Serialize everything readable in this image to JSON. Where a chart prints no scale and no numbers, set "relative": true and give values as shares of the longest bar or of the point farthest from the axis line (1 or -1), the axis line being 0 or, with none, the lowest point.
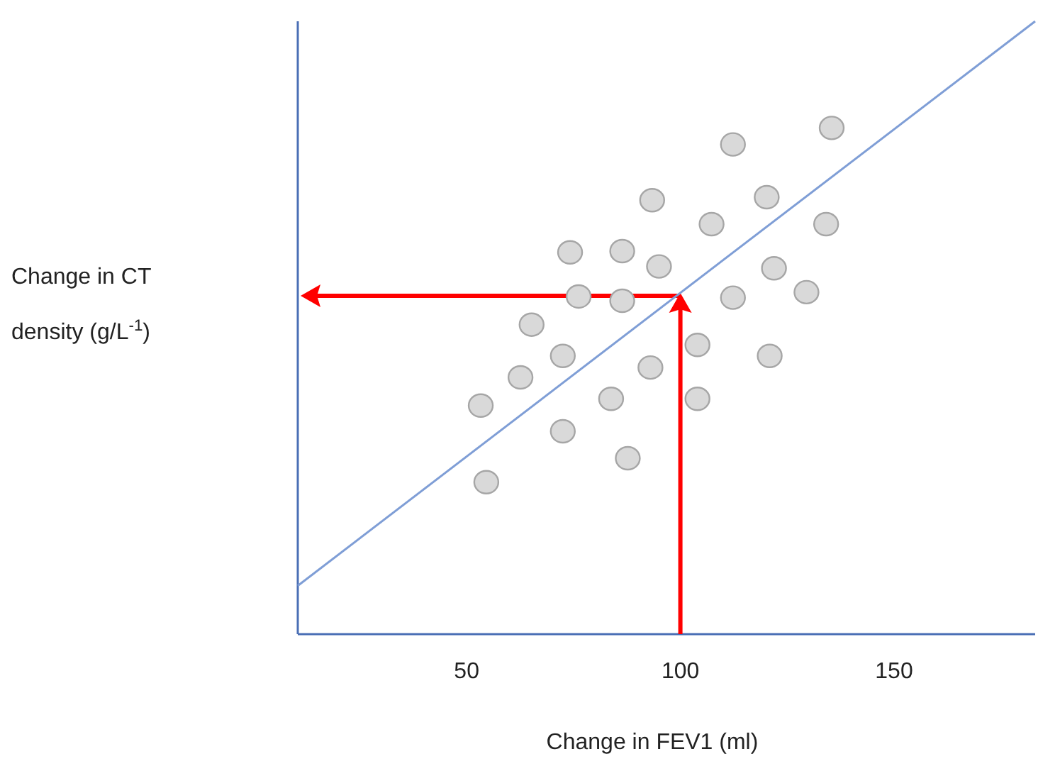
{
  "chart_data": {
    "type": "scatter",
    "xlabel": "Change in FEV1 (ml)",
    "ylabel": "Change in CT density (g/L$^{-1}$)",
    "relative": true,
    "xlim": [
      10.5,
      183
    ],
    "xticks": [
      50,
      100,
      150
    ],
    "tick_labels": "x",
    "grid": false,
    "legend": false,
    "marker": "circle",
    "series": [
      {
        "color": "#d9d9d9",
        "x": [
          112.3,
          135.4,
          93.4,
          120.2,
          107.3,
          134.1,
          74.2,
          86.4,
          95.0,
          121.9,
          76.2,
          86.4,
          112.3,
          129.5,
          65.2,
          104.0,
          72.5,
          120.9,
          62.6,
          93.0,
          53.3,
          83.8,
          104.0,
          72.5,
          87.7,
          54.6
        ],
        "values": [
          0.799,
          0.826,
          0.708,
          0.713,
          0.669,
          0.669,
          0.623,
          0.625,
          0.6,
          0.597,
          0.551,
          0.544,
          0.549,
          0.558,
          0.505,
          0.472,
          0.454,
          0.454,
          0.419,
          0.435,
          0.373,
          0.384,
          0.384,
          0.331,
          0.287,
          0.248
        ]
      },
      {
        "type": "line",
        "color": "#7f9ed6",
        "line_style": "solid",
        "marker": "none",
        "x": [
          10.5,
          183
        ],
        "values": [
          0.079,
          1
        ]
      }
    ]
  }
}
